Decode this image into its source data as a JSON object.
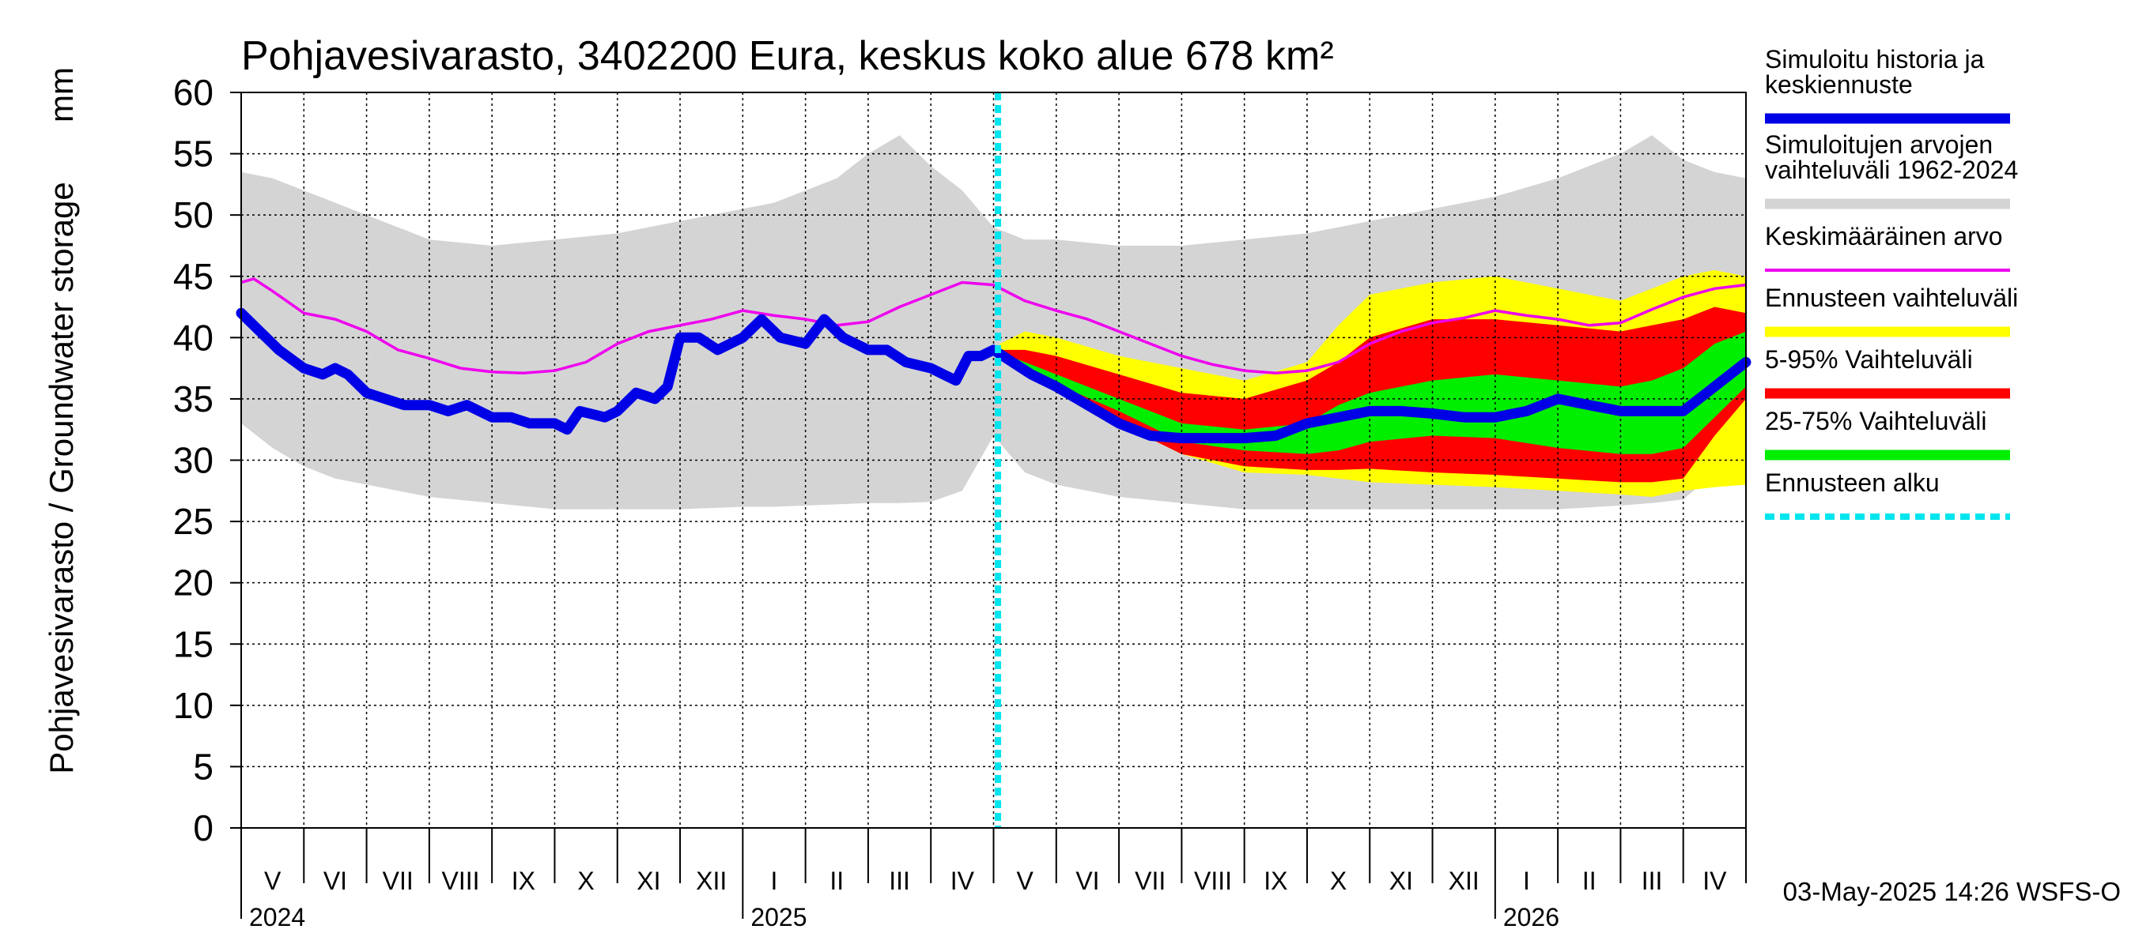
{
  "chart_data": {
    "type": "area",
    "title": "Pohjavesivarasto, 3402200 Eura, keskus koko alue 678 km²",
    "ylabel": "Pohjavesivarasto / Groundwater storage",
    "yunit": "mm",
    "ylim": [
      0,
      60
    ],
    "yticks": [
      0,
      5,
      10,
      15,
      20,
      25,
      30,
      35,
      40,
      45,
      50,
      55,
      60
    ],
    "xlim": [
      0,
      24
    ],
    "x_unit": "months since 2024-05-01",
    "months": [
      "V",
      "VI",
      "VII",
      "VIII",
      "IX",
      "X",
      "XI",
      "XII",
      "I",
      "II",
      "III",
      "IV",
      "V",
      "VI",
      "VII",
      "VIII",
      "IX",
      "X",
      "XI",
      "XII",
      "I",
      "II",
      "III",
      "IV"
    ],
    "years": [
      {
        "label": "2024",
        "x": 0
      },
      {
        "label": "2025",
        "x": 8
      },
      {
        "label": "2026",
        "x": 20
      }
    ],
    "forecast_start_x": 12.07,
    "footer": "03-May-2025 14:26 WSFS-O",
    "legend": [
      {
        "label": "Simuloitu historia ja keskiennuste",
        "color": "#0000e6",
        "style": "thick"
      },
      {
        "label": "Simuloitujen arvojen vaihteluväli 1962-2024",
        "color": "#d4d4d4",
        "style": "thick"
      },
      {
        "label": "Keskimääräinen arvo",
        "color": "#ee00ee",
        "style": "thin"
      },
      {
        "label": "Ennusteen vaihteluväli",
        "color": "#ffff00",
        "style": "thick"
      },
      {
        "label": "5-95% Vaihteluväli",
        "color": "#ff0000",
        "style": "thick"
      },
      {
        "label": "25-75% Vaihteluväli",
        "color": "#00ee00",
        "style": "thick"
      },
      {
        "label": "Ennusteen alku",
        "color": "#00e5ee",
        "style": "dashed"
      }
    ],
    "gray_band": {
      "x": [
        0,
        0.5,
        1,
        1.5,
        2,
        3,
        4,
        5,
        6,
        7,
        8,
        8.5,
        9,
        9.5,
        10,
        10.5,
        11,
        11.5,
        12,
        12.5,
        13,
        14,
        15,
        16,
        17,
        18,
        19,
        20,
        21,
        22,
        22.5,
        23,
        23.5,
        24
      ],
      "upper": [
        53.5,
        53,
        52,
        51,
        50,
        48,
        47.5,
        48,
        48.5,
        49.5,
        50.5,
        51,
        52,
        53,
        55,
        56.5,
        54,
        52,
        49,
        48,
        48,
        47.5,
        47.5,
        48,
        48.5,
        49.5,
        50.5,
        51.5,
        53,
        55,
        56.5,
        54.5,
        53.5,
        53
      ],
      "lower": [
        33,
        31,
        29.5,
        28.5,
        28,
        27,
        26.5,
        26,
        26,
        26,
        26.2,
        26.2,
        26.3,
        26.4,
        26.5,
        26.5,
        26.6,
        27.5,
        32,
        29,
        28,
        27,
        26.5,
        26,
        26,
        26,
        26,
        26,
        26,
        26.3,
        26.5,
        26.8,
        29,
        33
      ]
    },
    "forecast_yellow": {
      "x": [
        12.1,
        12.5,
        13,
        14,
        15,
        16,
        17,
        17.5,
        18,
        19,
        20,
        21,
        22,
        22.5,
        23,
        23.5,
        24
      ],
      "upper": [
        39.5,
        40.5,
        40,
        38.5,
        37.5,
        36.5,
        38,
        41,
        43.5,
        44.5,
        45,
        44,
        43,
        44,
        45,
        45.5,
        45
      ],
      "lower": [
        38.5,
        37.5,
        36,
        33,
        30.5,
        29,
        28.8,
        28.5,
        28.2,
        28,
        27.8,
        27.5,
        27.2,
        27,
        27.5,
        27.8,
        28
      ]
    },
    "forecast_red": {
      "x": [
        12.1,
        12.5,
        13,
        14,
        15,
        16,
        17,
        17.5,
        18,
        19,
        20,
        21,
        22,
        22.5,
        23,
        23.5,
        24
      ],
      "upper": [
        39,
        39,
        38.5,
        37,
        35.5,
        35,
        36.5,
        38,
        40,
        41.5,
        41.5,
        41,
        40.5,
        41,
        41.5,
        42.5,
        42
      ],
      "lower": [
        38.5,
        37.5,
        36,
        33,
        30.5,
        29.5,
        29.2,
        29.2,
        29.3,
        29,
        28.8,
        28.5,
        28.2,
        28.2,
        28.5,
        32,
        35
      ]
    },
    "forecast_green": {
      "x": [
        12.1,
        12.5,
        13,
        14,
        15,
        16,
        17,
        17.5,
        18,
        19,
        20,
        21,
        22,
        22.5,
        23,
        23.5,
        24
      ],
      "upper": [
        38.8,
        38,
        37,
        35,
        33,
        32.5,
        33,
        34.5,
        35.5,
        36.5,
        37,
        36.5,
        36,
        36.5,
        37.5,
        39.5,
        40.5
      ],
      "lower": [
        38.6,
        37.8,
        36.2,
        34,
        31.5,
        30.8,
        30.5,
        30.8,
        31.5,
        32,
        31.8,
        31,
        30.5,
        30.5,
        31,
        33.5,
        36
      ]
    },
    "mean_line": {
      "x": [
        0,
        0.2,
        0.5,
        1,
        1.5,
        2,
        2.5,
        3,
        3.5,
        4,
        4.5,
        5,
        5.5,
        6,
        6.5,
        7,
        7.5,
        8,
        8.5,
        9,
        9.5,
        10,
        10.5,
        11,
        11.5,
        12,
        12.5,
        13,
        13.5,
        14,
        14.5,
        15,
        15.5,
        16,
        16.5,
        17,
        17.5,
        18,
        18.5,
        19,
        19.5,
        20,
        20.5,
        21,
        21.5,
        22,
        22.5,
        23,
        23.5,
        24
      ],
      "y": [
        44.5,
        44.8,
        43.8,
        42,
        41.5,
        40.5,
        39,
        38.3,
        37.5,
        37.2,
        37.1,
        37.3,
        38,
        39.5,
        40.5,
        41,
        41.5,
        42.2,
        41.8,
        41.5,
        41,
        41.3,
        42.5,
        43.5,
        44.5,
        44.3,
        43,
        42.2,
        41.5,
        40.5,
        39.5,
        38.5,
        37.8,
        37.3,
        37.1,
        37.3,
        38,
        39.5,
        40.5,
        41.2,
        41.6,
        42.2,
        41.8,
        41.5,
        41,
        41.2,
        42.3,
        43.3,
        44,
        44.3
      ]
    },
    "history_line": {
      "x": [
        0,
        0.3,
        0.6,
        1,
        1.3,
        1.5,
        1.7,
        2,
        2.3,
        2.6,
        3,
        3.3,
        3.6,
        4,
        4.3,
        4.6,
        5,
        5.2,
        5.4,
        5.8,
        6,
        6.3,
        6.6,
        6.8,
        7,
        7.3,
        7.6,
        8,
        8.3,
        8.6,
        9,
        9.3,
        9.6,
        10,
        10.3,
        10.6,
        11,
        11.2,
        11.4,
        11.6,
        11.8,
        12,
        12.3,
        12.6,
        13,
        13.5,
        14,
        14.5,
        15,
        15.5,
        16,
        16.5,
        17,
        17.5,
        18,
        18.5,
        19,
        19.5,
        20,
        20.5,
        21,
        21.5,
        22,
        22.5,
        23,
        23.5,
        24
      ],
      "y": [
        42,
        40.5,
        39,
        37.5,
        37,
        37.5,
        37,
        35.5,
        35,
        34.5,
        34.5,
        34,
        34.5,
        33.5,
        33.5,
        33,
        33,
        32.5,
        34,
        33.5,
        34,
        35.5,
        35,
        36,
        40,
        40,
        39,
        40,
        41.5,
        40,
        39.5,
        41.5,
        40,
        39,
        39,
        38,
        37.5,
        37,
        36.5,
        38.5,
        38.5,
        39,
        38,
        37,
        36,
        34.5,
        33,
        32,
        31.8,
        31.8,
        31.8,
        32,
        33,
        33.5,
        34,
        34,
        33.8,
        33.5,
        33.5,
        34,
        35,
        34.5,
        34,
        34,
        34,
        36,
        38
      ]
    }
  }
}
